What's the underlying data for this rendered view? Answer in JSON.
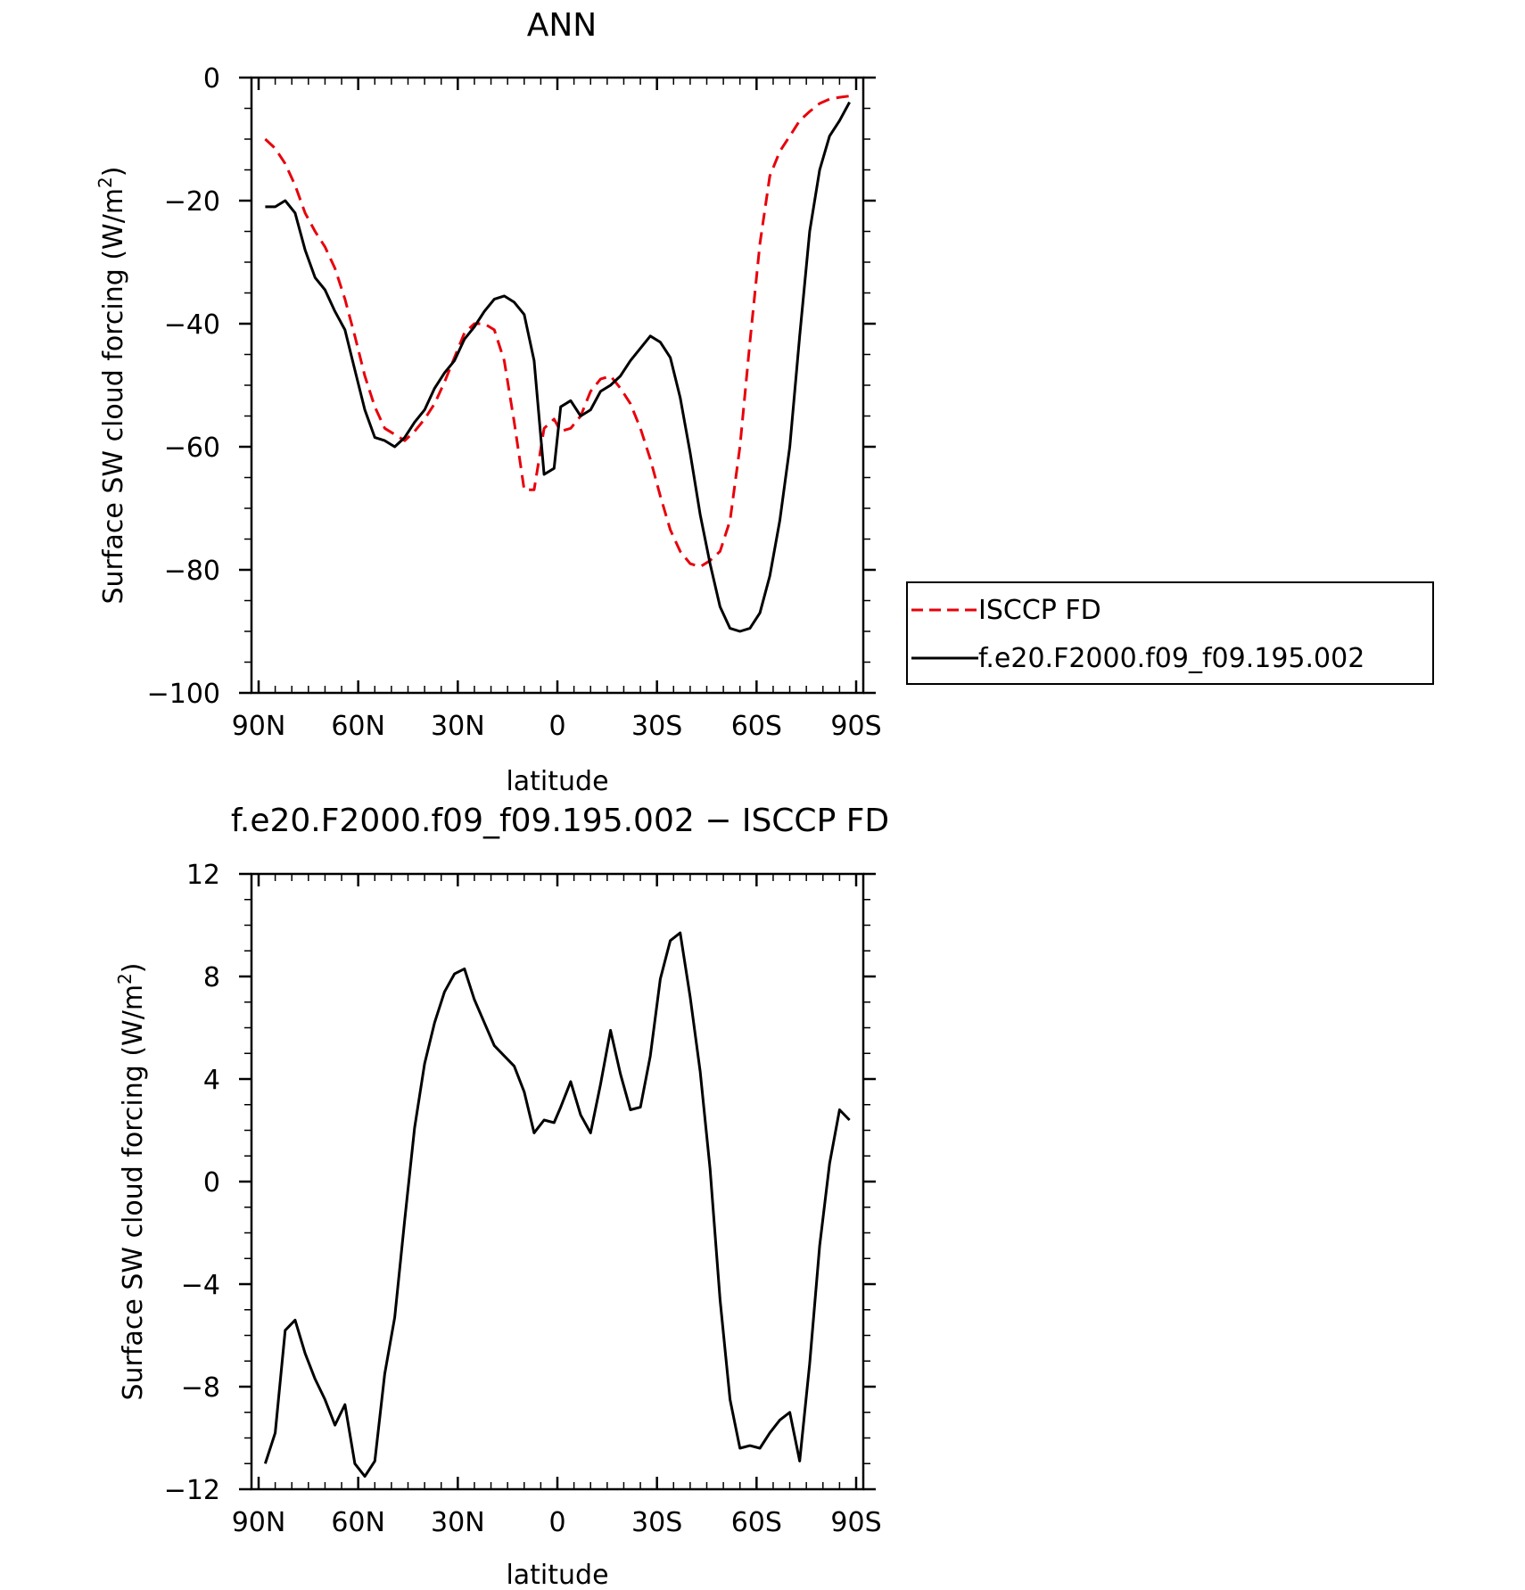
{
  "chart_data": [
    {
      "type": "line",
      "title": "ANN",
      "xlabel": "latitude",
      "ylabel": "Surface SW cloud forcing (W/m",
      "ylabel_sup": "2",
      "ylabel_close": ")",
      "xlim": [
        90,
        -90
      ],
      "ylim": [
        -100,
        0
      ],
      "x_ticks": [
        90,
        60,
        30,
        0,
        -30,
        -60,
        -90
      ],
      "x_tick_labels": [
        "90N",
        "60N",
        "30N",
        "0",
        "30S",
        "60S",
        "90S"
      ],
      "y_ticks": [
        0,
        -20,
        -40,
        -60,
        -80,
        -100
      ],
      "y_tick_labels": [
        "0",
        "−20",
        "−40",
        "−60",
        "−80",
        "−100"
      ],
      "grid": false,
      "legend": {
        "placement": "right",
        "entries": [
          "ISCCP FD",
          "f.e20.F2000.f09_f09.195.002"
        ]
      },
      "series": [
        {
          "name": "ISCCP FD",
          "color": "#e8000b",
          "style": "dashed",
          "x": [
            88,
            85,
            82,
            79,
            76,
            73,
            70,
            67,
            64,
            61,
            58,
            55,
            52,
            49,
            46,
            43,
            40,
            37,
            34,
            31,
            28,
            25,
            22,
            19,
            16,
            13,
            10,
            7,
            4,
            1,
            -1,
            -4,
            -7,
            -10,
            -13,
            -16,
            -19,
            -22,
            -25,
            -28,
            -31,
            -34,
            -37,
            -40,
            -43,
            -46,
            -49,
            -52,
            -55,
            -58,
            -61,
            -64,
            -67,
            -70,
            -73,
            -76,
            -79,
            -82,
            -85,
            -88
          ],
          "y": [
            -10,
            -11.5,
            -14,
            -17.5,
            -22,
            -25,
            -27.5,
            -31,
            -36,
            -42,
            -48.5,
            -53.5,
            -57,
            -58,
            -59,
            -57.5,
            -55.5,
            -53,
            -49.5,
            -45.5,
            -41.5,
            -40,
            -40,
            -41,
            -46,
            -56,
            -67,
            -67,
            -57,
            -55.5,
            -57.5,
            -57,
            -55,
            -51,
            -49,
            -48.5,
            -50.5,
            -53,
            -57,
            -62,
            -68,
            -73.5,
            -77,
            -79,
            -79.5,
            -78.5,
            -77,
            -72,
            -60,
            -43,
            -27,
            -16,
            -12,
            -9.5,
            -7,
            -5.5,
            -4.2,
            -3.5,
            -3.2,
            -3
          ],
          "rendered_x": [
            88,
            85,
            82,
            79,
            76,
            73,
            70,
            67,
            64,
            61,
            58,
            55,
            52,
            49,
            46,
            43,
            40,
            37,
            34,
            31,
            28,
            25,
            22,
            19,
            16,
            13,
            10,
            7,
            4,
            1,
            -1,
            -4,
            -7,
            -10,
            -13,
            -16,
            -19,
            -22,
            -25,
            -28,
            -31,
            -34,
            -37,
            -40,
            -43,
            -46,
            -49,
            -52,
            -55,
            -58,
            -61,
            -64,
            -67,
            -70,
            -73,
            -76,
            -79,
            -82,
            -85,
            -88
          ]
        },
        {
          "name": "f.e20.F2000.f09_f09.195.002",
          "color": "#000000",
          "style": "solid",
          "x": [
            88,
            85,
            82,
            79,
            76,
            73,
            70,
            67,
            64,
            61,
            58,
            55,
            52,
            49,
            46,
            43,
            40,
            37,
            34,
            31,
            28,
            25,
            22,
            19,
            16,
            13,
            10,
            7,
            4,
            1,
            -1,
            -4,
            -7,
            -10,
            -13,
            -16,
            -19,
            -22,
            -25,
            -28,
            -31,
            -34,
            -37,
            -40,
            -43,
            -46,
            -49,
            -52,
            -55,
            -58,
            -61,
            -64,
            -67,
            -70,
            -73,
            -76,
            -79,
            -82,
            -85,
            -88
          ],
          "y": [
            -21,
            -21,
            -20,
            -22,
            -28,
            -32.5,
            -34.5,
            -38,
            -41,
            -47.5,
            -54,
            -58.5,
            -59,
            -60,
            -58.5,
            -56,
            -54,
            -50.5,
            -48,
            -46,
            -42.5,
            -40.5,
            -38,
            -36,
            -35.5,
            -36.5,
            -38.5,
            -46,
            -64.5,
            -63.5,
            -53.5,
            -52.5,
            -55,
            -54,
            -51,
            -50,
            -48.5,
            -46,
            -44,
            -42,
            -43,
            -45.5,
            -52,
            -61,
            -71,
            -79,
            -86,
            -89.5,
            -90,
            -89.5,
            -87,
            -81,
            -72,
            -60,
            -42,
            -25,
            -15,
            -9.5,
            -7,
            -4
          ]
        }
      ]
    },
    {
      "type": "line",
      "title": "f.e20.F2000.f09_f09.195.002 − ISCCP FD",
      "xlabel": "latitude",
      "ylabel": "Surface SW cloud forcing (W/m",
      "ylabel_sup": "2",
      "ylabel_close": ")",
      "xlim": [
        90,
        -90
      ],
      "ylim": [
        -12,
        12
      ],
      "x_ticks": [
        90,
        60,
        30,
        0,
        -30,
        -60,
        -90
      ],
      "x_tick_labels": [
        "90N",
        "60N",
        "30N",
        "0",
        "30S",
        "60S",
        "90S"
      ],
      "y_ticks": [
        12,
        8,
        4,
        0,
        -4,
        -8,
        -12
      ],
      "y_tick_labels": [
        "12",
        "8",
        "4",
        "0",
        "−4",
        "−8",
        "−12"
      ],
      "grid": false,
      "series": [
        {
          "color": "#000000",
          "style": "solid",
          "x": [
            88,
            85,
            82,
            79,
            76,
            73,
            70,
            67,
            64,
            61,
            58,
            55,
            52,
            49,
            46,
            43,
            40,
            37,
            34,
            31,
            28,
            25,
            22,
            19,
            16,
            13,
            10,
            7,
            4,
            1,
            -1,
            -4,
            -7,
            -10,
            -13,
            -16,
            -19,
            -22,
            -25,
            -28,
            -31,
            -34,
            -37,
            -40,
            -43,
            -46,
            -49,
            -52,
            -55,
            -58,
            -61,
            -64,
            -67,
            -70,
            -73,
            -76,
            -79,
            -82,
            -85,
            -88
          ],
          "y": [
            -11,
            -9.8,
            -5.8,
            -5.4,
            -6.7,
            -7.7,
            -8.5,
            -9.5,
            -8.7,
            -11,
            -11.5,
            -10.9,
            -7.5,
            -5.3,
            -1.5,
            2.1,
            4.6,
            6.2,
            7.4,
            8.1,
            8.3,
            7.1,
            6.2,
            5.3,
            4.9,
            4.5,
            3.5,
            1.9,
            2.4,
            2.3,
            2.9,
            3.9,
            2.6,
            1.9,
            3.8,
            5.9,
            4.2,
            2.8,
            2.9,
            4.9,
            7.9,
            9.4,
            9.7,
            7.2,
            4.3,
            0.5,
            -4.6,
            -8.5,
            -10.4,
            -10.3,
            -10.4,
            -9.8,
            -9.3,
            -9,
            -10.9,
            -7.1,
            -2.5,
            0.7,
            2.8,
            2.4
          ]
        }
      ]
    }
  ]
}
